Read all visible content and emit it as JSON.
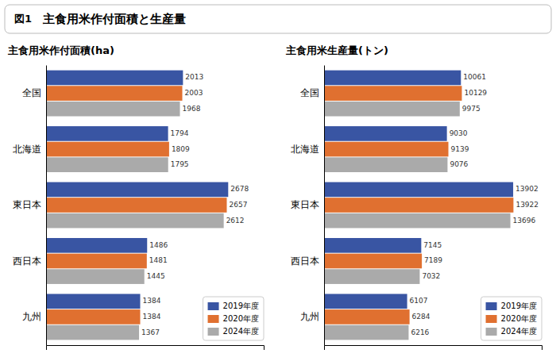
{
  "title": "主食用米作付面積と生産量",
  "annotations": [
    "図1"
  ],
  "chart_data": [
    {
      "type": "bar",
      "orientation": "horizontal",
      "title": "主食用米作付面積(ha)",
      "categories": [
        "全国",
        "北海道",
        "東日本",
        "西日本",
        "九州"
      ],
      "series": [
        {
          "name": "2019年度",
          "color": "#3955a3",
          "values": [
            2013,
            1794,
            2678,
            1486,
            1384
          ]
        },
        {
          "name": "2020年度",
          "color": "#e07030",
          "values": [
            2003,
            1809,
            2657,
            1481,
            1384
          ]
        },
        {
          "name": "2024年度",
          "color": "#aaaaaa",
          "values": [
            1968,
            1795,
            2612,
            1445,
            1367
          ]
        }
      ],
      "xlim": [
        0,
        3200
      ],
      "data_labels": true,
      "tick_labels": "y",
      "grid": false,
      "legend": "lower right"
    },
    {
      "type": "bar",
      "orientation": "horizontal",
      "title": "主食用米生産量(トン)",
      "categories": [
        "全国",
        "北海道",
        "東日本",
        "西日本",
        "九州"
      ],
      "series": [
        {
          "name": "2019年度",
          "color": "#3955a3",
          "values": [
            10061,
            9030,
            13902,
            7145,
            6107
          ]
        },
        {
          "name": "2020年度",
          "color": "#e07030",
          "values": [
            10129,
            9139,
            13922,
            7189,
            6284
          ]
        },
        {
          "name": "2024年度",
          "color": "#aaaaaa",
          "values": [
            9975,
            9076,
            13696,
            7032,
            6216
          ]
        }
      ],
      "xlim": [
        0,
        16000
      ],
      "data_labels": true,
      "tick_labels": "y",
      "grid": false,
      "legend": "lower right"
    }
  ]
}
